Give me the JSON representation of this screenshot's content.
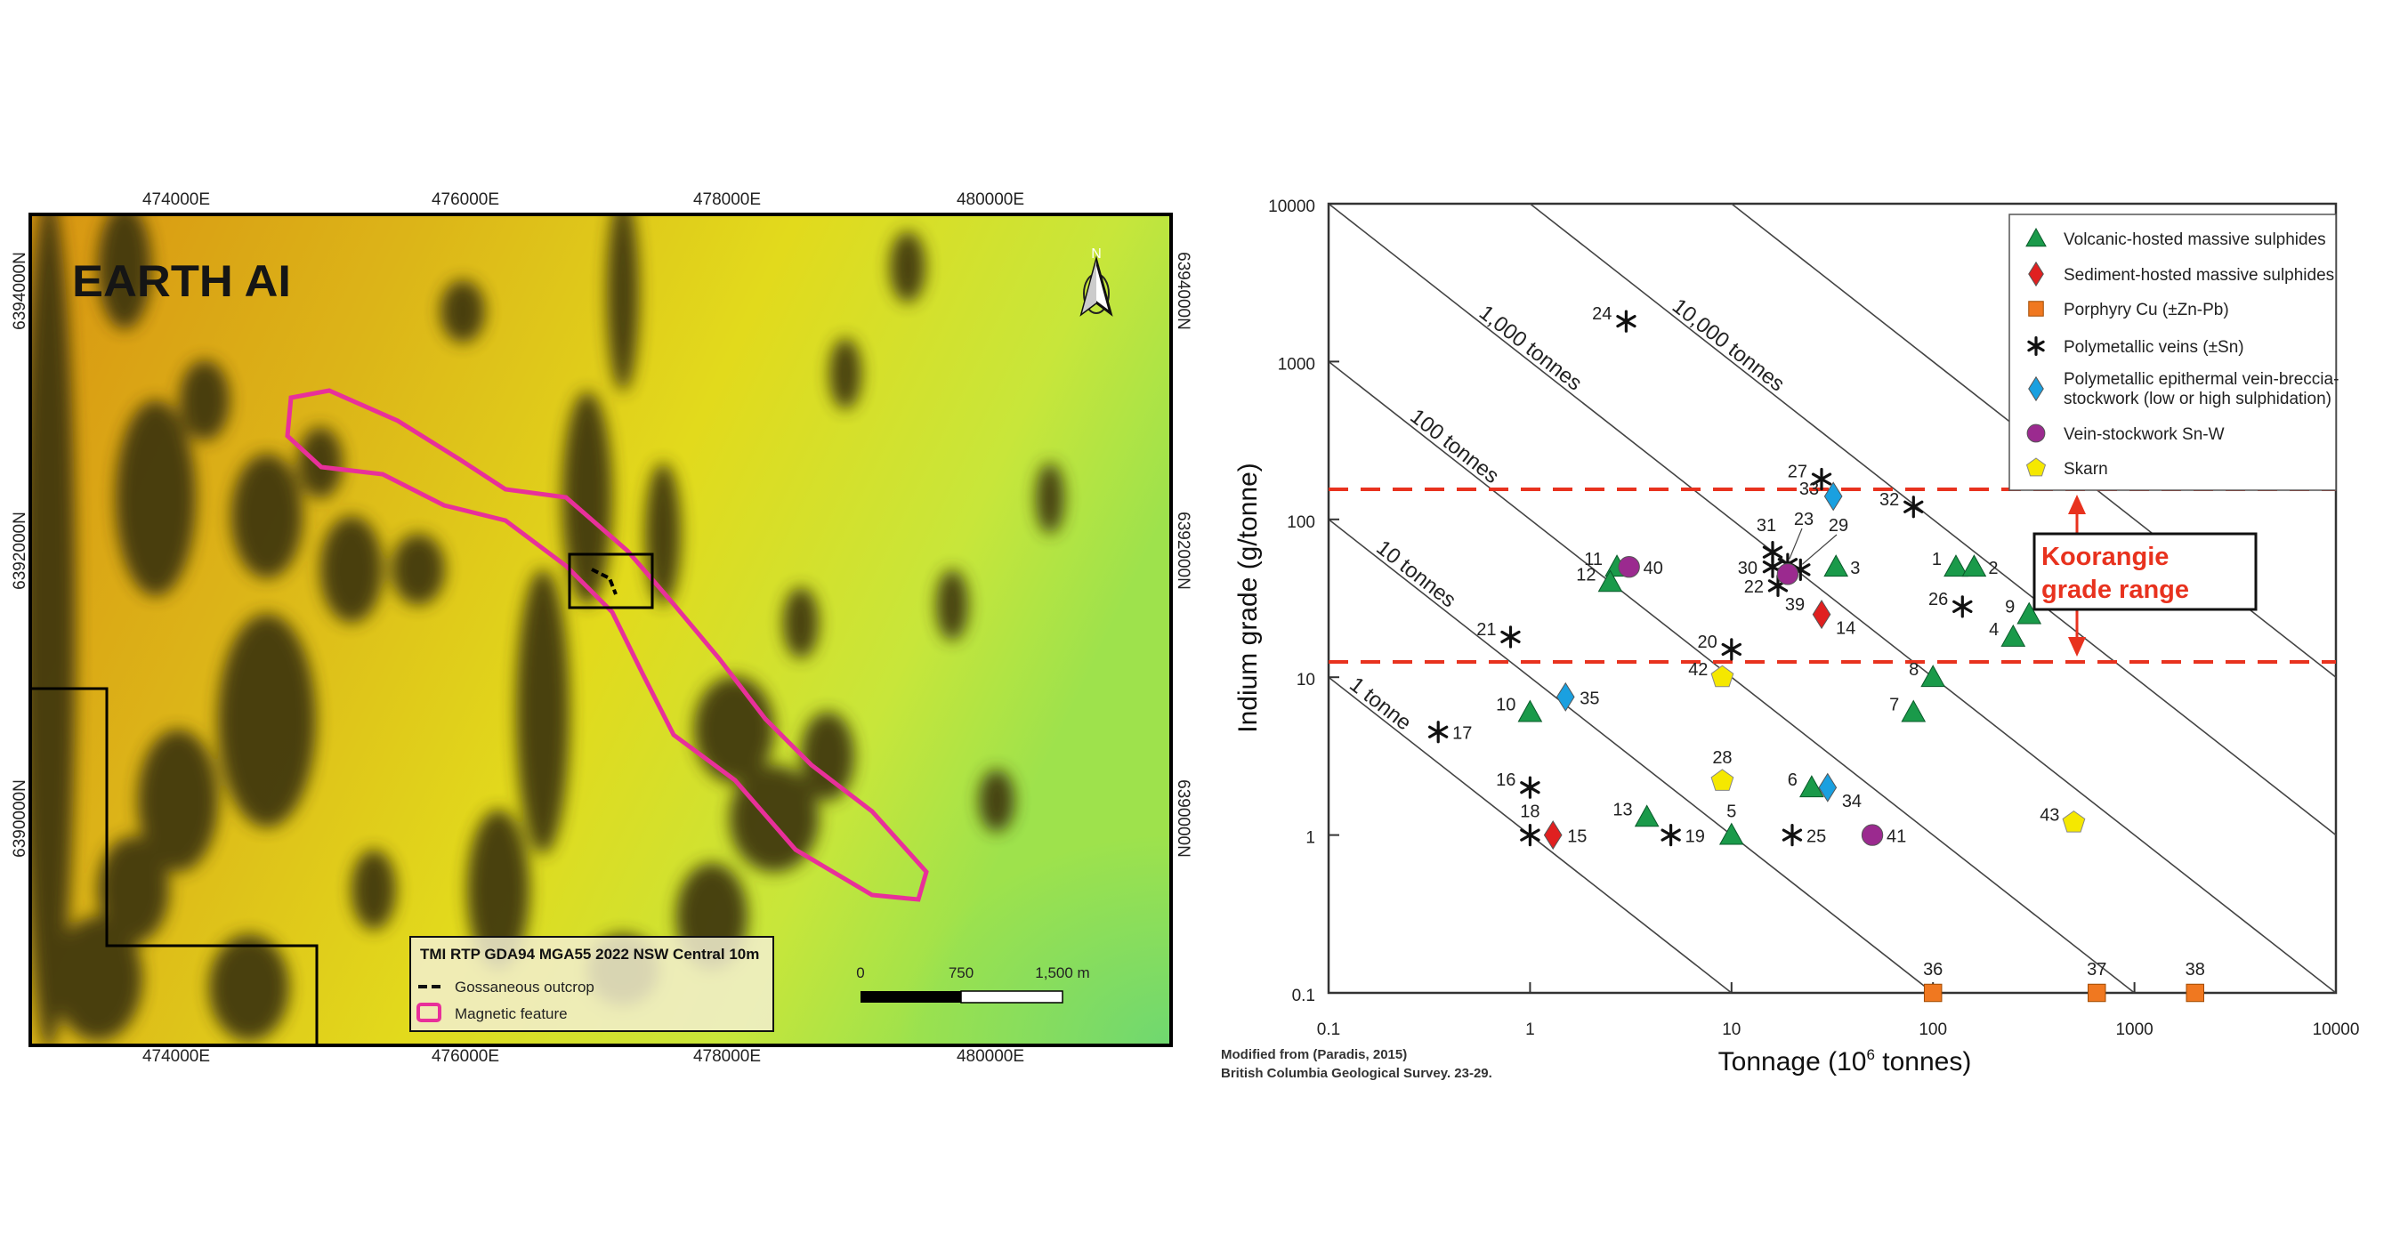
{
  "map": {
    "logo": "EARTH AI",
    "north_label": "N",
    "top_ticks": [
      "474000E",
      "476000E",
      "478000E",
      "480000E"
    ],
    "bottom_ticks": [
      "474000E",
      "476000E",
      "478000E",
      "480000E"
    ],
    "left_ticks": [
      "6394000N",
      "6392000N",
      "6390000N"
    ],
    "right_ticks": [
      "6394000N",
      "6392000N",
      "6390000N"
    ],
    "legend": {
      "title": "TMI RTP GDA94 MGA55 2022 NSW Central 10m",
      "items": [
        "Gossaneous outcrop",
        "Magnetic feature"
      ]
    },
    "scale_bar": [
      "0",
      "750",
      "1,500 m"
    ],
    "colors": {
      "magnetic_feature": "#e8309a",
      "low": "#3a3410",
      "mid": "#e0d418",
      "high": "#8ee05a"
    }
  },
  "chart_data": {
    "type": "scatter",
    "xlabel": "Tonnage (10",
    "xlabel_sup": "6",
    "xlabel_end": " tonnes)",
    "ylabel": "Indium grade (g/tonne)",
    "x_scale": "log",
    "y_scale": "log",
    "xlim": [
      0.1,
      10000
    ],
    "ylim": [
      0.1,
      10000
    ],
    "x_ticks": [
      "0.1",
      "1",
      "10",
      "100",
      "1000",
      "10000"
    ],
    "y_ticks": [
      "10000",
      "1000",
      "100",
      "10",
      "1",
      "0.1"
    ],
    "iso_lines": [
      {
        "contained_tonnes": 1,
        "label": "1 tonne"
      },
      {
        "contained_tonnes": 10,
        "label": "10 tonnes"
      },
      {
        "contained_tonnes": 100,
        "label": "100 tonnes"
      },
      {
        "contained_tonnes": 1000,
        "label": "1,000 tonnes"
      },
      {
        "contained_tonnes": 10000,
        "label": "10,000 tonnes"
      },
      {
        "contained_tonnes": 100000,
        "label": ""
      }
    ],
    "grade_range": {
      "label_line1": "Koorangie",
      "label_line2": "grade range",
      "low": 12.5,
      "high": 155,
      "color": "#e8321e"
    },
    "legend": [
      {
        "key": "vhms",
        "label": "Volcanic-hosted massive sulphides",
        "shape": "triangle",
        "color": "#1a9a4a"
      },
      {
        "key": "shms",
        "label": "Sediment-hosted massive sulphides",
        "shape": "diamond",
        "color": "#e02020"
      },
      {
        "key": "porphyry",
        "label": "Porphyry Cu (±Zn-Pb)",
        "shape": "square",
        "color": "#f07820"
      },
      {
        "key": "veins",
        "label": "Polymetallic veins (±Sn)",
        "shape": "asterisk",
        "color": "#111111"
      },
      {
        "key": "epithermal",
        "label": "Polymetallic epithermal vein-breccia-",
        "label2": "stockwork (low or high sulphidation)",
        "shape": "diamond",
        "color": "#1aa0e0"
      },
      {
        "key": "snw",
        "label": "Vein-stockwork Sn-W",
        "shape": "circle",
        "color": "#9b2a8f"
      },
      {
        "key": "skarn",
        "label": "Skarn",
        "shape": "pentagon",
        "color": "#f5e800"
      }
    ],
    "points": [
      {
        "id": "1",
        "type": "vhms",
        "tonnage": 130,
        "grade": 50
      },
      {
        "id": "2",
        "type": "vhms",
        "tonnage": 160,
        "grade": 50
      },
      {
        "id": "3",
        "type": "vhms",
        "tonnage": 33,
        "grade": 50
      },
      {
        "id": "4",
        "type": "vhms",
        "tonnage": 250,
        "grade": 18
      },
      {
        "id": "5",
        "type": "vhms",
        "tonnage": 10,
        "grade": 1
      },
      {
        "id": "6",
        "type": "vhms",
        "tonnage": 25,
        "grade": 2
      },
      {
        "id": "7",
        "type": "vhms",
        "tonnage": 80,
        "grade": 6
      },
      {
        "id": "8",
        "type": "vhms",
        "tonnage": 100,
        "grade": 10
      },
      {
        "id": "9",
        "type": "vhms",
        "tonnage": 300,
        "grade": 25
      },
      {
        "id": "10",
        "type": "vhms",
        "tonnage": 1,
        "grade": 6
      },
      {
        "id": "11",
        "type": "vhms",
        "tonnage": 2.7,
        "grade": 50
      },
      {
        "id": "12",
        "type": "vhms",
        "tonnage": 2.5,
        "grade": 40
      },
      {
        "id": "13",
        "type": "vhms",
        "tonnage": 3.8,
        "grade": 1.3
      },
      {
        "id": "14",
        "type": "shms",
        "tonnage": 28,
        "grade": 25
      },
      {
        "id": "15",
        "type": "shms",
        "tonnage": 1.3,
        "grade": 1
      },
      {
        "id": "16",
        "type": "veins",
        "tonnage": 1,
        "grade": 2
      },
      {
        "id": "17",
        "type": "veins",
        "tonnage": 0.35,
        "grade": 4.5
      },
      {
        "id": "18",
        "type": "veins",
        "tonnage": 1,
        "grade": 1
      },
      {
        "id": "19",
        "type": "veins",
        "tonnage": 5,
        "grade": 1
      },
      {
        "id": "20",
        "type": "veins",
        "tonnage": 10,
        "grade": 15
      },
      {
        "id": "21",
        "type": "veins",
        "tonnage": 0.8,
        "grade": 18
      },
      {
        "id": "22",
        "type": "veins",
        "tonnage": 17,
        "grade": 38
      },
      {
        "id": "23",
        "type": "veins",
        "tonnage": 19,
        "grade": 52
      },
      {
        "id": "24",
        "type": "veins",
        "tonnage": 3,
        "grade": 1800
      },
      {
        "id": "25",
        "type": "veins",
        "tonnage": 20,
        "grade": 1
      },
      {
        "id": "26",
        "type": "veins",
        "tonnage": 140,
        "grade": 28
      },
      {
        "id": "27",
        "type": "veins",
        "tonnage": 28,
        "grade": 180
      },
      {
        "id": "28",
        "type": "skarn",
        "tonnage": 9,
        "grade": 2.2
      },
      {
        "id": "29",
        "type": "veins",
        "tonnage": 22,
        "grade": 48
      },
      {
        "id": "30",
        "type": "veins",
        "tonnage": 16,
        "grade": 50
      },
      {
        "id": "31",
        "type": "veins",
        "tonnage": 16,
        "grade": 62
      },
      {
        "id": "32",
        "type": "veins",
        "tonnage": 80,
        "grade": 120
      },
      {
        "id": "33",
        "type": "epithermal",
        "tonnage": 32,
        "grade": 140
      },
      {
        "id": "34",
        "type": "epithermal",
        "tonnage": 30,
        "grade": 2
      },
      {
        "id": "35",
        "type": "epithermal",
        "tonnage": 1.5,
        "grade": 7.5
      },
      {
        "id": "36",
        "type": "porphyry",
        "tonnage": 100,
        "grade": 0.1
      },
      {
        "id": "37",
        "type": "porphyry",
        "tonnage": 650,
        "grade": 0.1
      },
      {
        "id": "38",
        "type": "porphyry",
        "tonnage": 2000,
        "grade": 0.1
      },
      {
        "id": "39",
        "type": "snw",
        "tonnage": 19,
        "grade": 45
      },
      {
        "id": "40",
        "type": "snw",
        "tonnage": 3.1,
        "grade": 50
      },
      {
        "id": "41",
        "type": "snw",
        "tonnage": 50,
        "grade": 1
      },
      {
        "id": "42",
        "type": "skarn",
        "tonnage": 9,
        "grade": 10
      },
      {
        "id": "43",
        "type": "skarn",
        "tonnage": 500,
        "grade": 1.2
      }
    ],
    "source_line1": "Modified from (Paradis, 2015)",
    "source_line2": "British Columbia Geological Survey. 23-29."
  }
}
